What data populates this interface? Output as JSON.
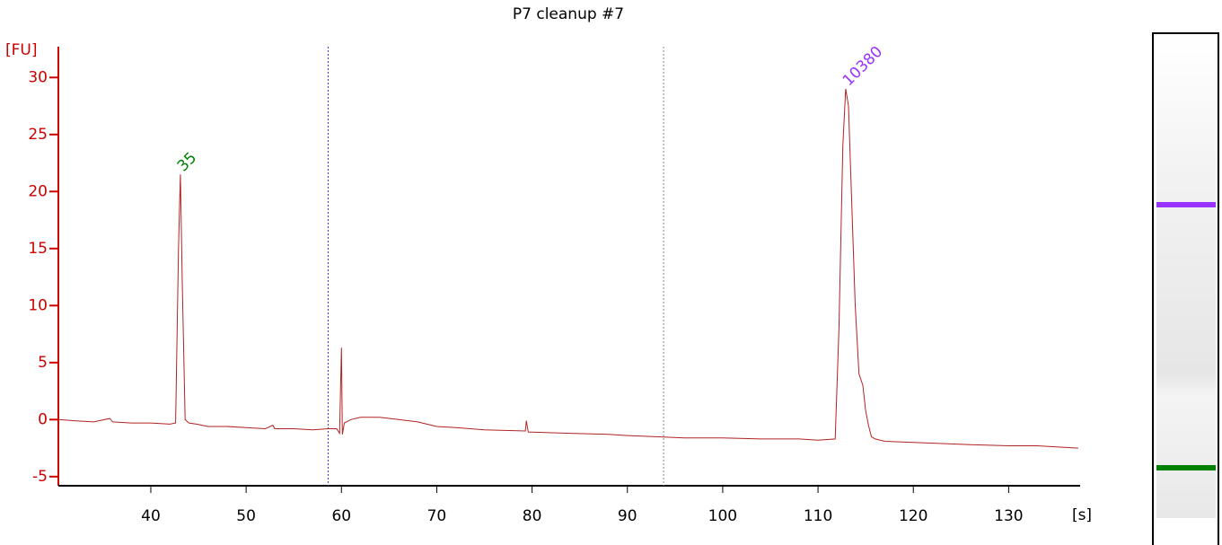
{
  "chart_data": {
    "type": "line",
    "title": "P7 cleanup #7",
    "y_label": "[FU]",
    "x_label": "[s]",
    "color": "#b22222",
    "axis_color": "#cc0000",
    "xlim": [
      30.3,
      137.5
    ],
    "ylim": [
      -5.8,
      32.7
    ],
    "xticks": [
      40,
      50,
      60,
      70,
      80,
      90,
      100,
      110,
      120,
      130
    ],
    "yticks": [
      -5,
      0,
      5,
      10,
      15,
      20,
      25,
      30
    ],
    "x": [
      30.3,
      32,
      34,
      35.7,
      36,
      38,
      40,
      42,
      42.6,
      42.9,
      43.1,
      43.3,
      43.6,
      44,
      44.8,
      46,
      48,
      50,
      52,
      52.8,
      53,
      55,
      57,
      58.6,
      59.5,
      59.8,
      60,
      60.1,
      60.3,
      61,
      62,
      64,
      66,
      68,
      70,
      72,
      75,
      79.3,
      79.4,
      79.6,
      80,
      84,
      88,
      90,
      93,
      96,
      100,
      104,
      108,
      110,
      111.8,
      112.2,
      112.6,
      112.9,
      113.2,
      113.5,
      113.9,
      114.3,
      114.7,
      115,
      115.3,
      115.6,
      116,
      117,
      120,
      123,
      126,
      130,
      133,
      135,
      137.3
    ],
    "values": [
      0,
      -0.1,
      -0.2,
      0.1,
      -0.2,
      -0.3,
      -0.3,
      -0.4,
      -0.3,
      15,
      21.5,
      12,
      0,
      -0.3,
      -0.4,
      -0.6,
      -0.6,
      -0.7,
      -0.8,
      -0.5,
      -0.8,
      -0.8,
      -0.9,
      -0.8,
      -0.8,
      -1.2,
      6.3,
      -1.3,
      -0.3,
      0,
      0.2,
      0.2,
      0,
      -0.2,
      -0.6,
      -0.7,
      -0.9,
      -1.0,
      -0.1,
      -1.1,
      -1.1,
      -1.2,
      -1.3,
      -1.4,
      -1.5,
      -1.6,
      -1.6,
      -1.7,
      -1.7,
      -1.8,
      -1.7,
      8,
      24,
      29,
      27.5,
      20,
      10,
      4,
      3,
      0.8,
      -0.5,
      -1.5,
      -1.7,
      -1.9,
      -2.0,
      -2.1,
      -2.2,
      -2.3,
      -2.3,
      -2.4,
      -2.5
    ],
    "peaks": [
      {
        "label": "35",
        "x": 43.1,
        "y": 21.5,
        "color": "#008000"
      },
      {
        "label": "10380",
        "x": 112.9,
        "y": 29,
        "color": "#9933ff"
      }
    ],
    "vlines": [
      {
        "x": 58.6,
        "color": "#3333cc"
      },
      {
        "x": 93.8,
        "color": "#888888"
      }
    ]
  }
}
